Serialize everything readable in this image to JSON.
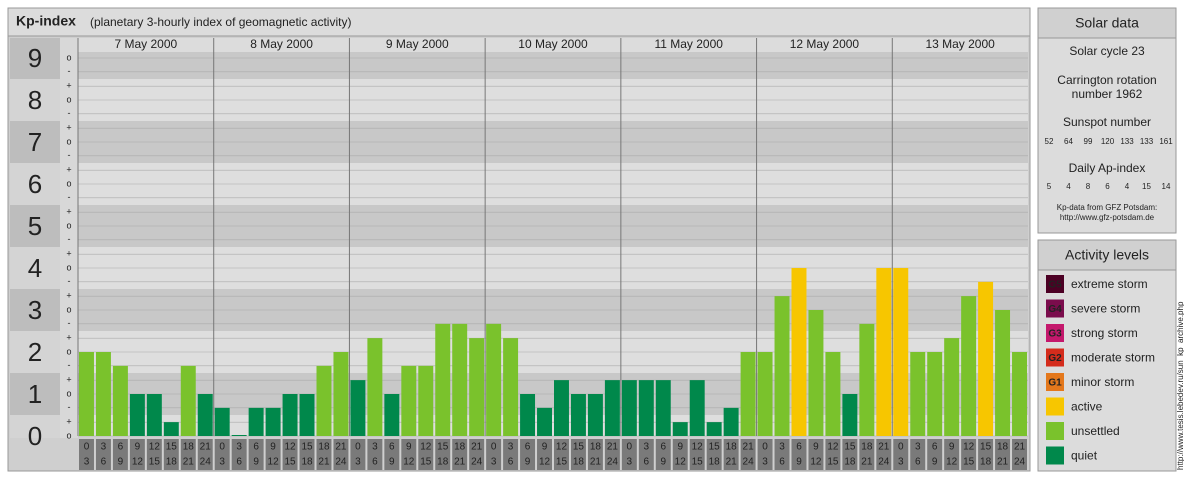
{
  "chart_data": {
    "type": "bar",
    "title": "Kp-index",
    "subtitle": "(planetary 3-hourly index of geomagnetic activity)",
    "days": [
      "7 May 2000",
      "8 May 2000",
      "9 May 2000",
      "10 May 2000",
      "11 May 2000",
      "12 May 2000",
      "13 May 2000"
    ],
    "hours": [
      [
        "0",
        "3"
      ],
      [
        "3",
        "6"
      ],
      [
        "6",
        "9"
      ],
      [
        "9",
        "12"
      ],
      [
        "12",
        "15"
      ],
      [
        "15",
        "18"
      ],
      [
        "18",
        "21"
      ],
      [
        "21",
        "24"
      ]
    ],
    "values": [
      2,
      2,
      1.67,
      1,
      1,
      0.33,
      1.67,
      1,
      0.67,
      0,
      0.67,
      0.67,
      1,
      1,
      1.67,
      2,
      1.33,
      2.33,
      1,
      1.67,
      1.67,
      2.67,
      2.67,
      2.33,
      2.67,
      2.33,
      1,
      0.67,
      1.33,
      1,
      1,
      1.33,
      1.33,
      1.33,
      1.33,
      0.33,
      1.33,
      0.33,
      0.67,
      2,
      2,
      3.33,
      4,
      3,
      2,
      1,
      2.67,
      4,
      4,
      2,
      2,
      2.33,
      3.33,
      3.67,
      3,
      2
    ],
    "colors": [
      "#7ac22c",
      "#7ac22c",
      "#7ac22c",
      "#00884b",
      "#00884b",
      "#00884b",
      "#7ac22c",
      "#00884b",
      "#00884b",
      "#00884b",
      "#00884b",
      "#00884b",
      "#00884b",
      "#00884b",
      "#7ac22c",
      "#7ac22c",
      "#00884b",
      "#7ac22c",
      "#00884b",
      "#7ac22c",
      "#7ac22c",
      "#7ac22c",
      "#7ac22c",
      "#7ac22c",
      "#7ac22c",
      "#7ac22c",
      "#00884b",
      "#00884b",
      "#00884b",
      "#00884b",
      "#00884b",
      "#00884b",
      "#00884b",
      "#00884b",
      "#00884b",
      "#00884b",
      "#00884b",
      "#00884b",
      "#00884b",
      "#7ac22c",
      "#7ac22c",
      "#7ac22c",
      "#f7c600",
      "#7ac22c",
      "#7ac22c",
      "#00884b",
      "#7ac22c",
      "#f7c600",
      "#f7c600",
      "#7ac22c",
      "#7ac22c",
      "#7ac22c",
      "#7ac22c",
      "#f7c600",
      "#7ac22c",
      "#7ac22c"
    ],
    "ylim": [
      0,
      9
    ],
    "yticks": [
      0,
      1,
      2,
      3,
      4,
      5,
      6,
      7,
      8,
      9
    ],
    "minor_ticks": [
      {
        "value": 0,
        "label": "o"
      },
      {
        "value": 0.33,
        "label": "+"
      },
      {
        "value": 0.67,
        "label": "-"
      },
      {
        "value": 1,
        "label": "o"
      },
      {
        "value": 1.33,
        "label": "+"
      },
      {
        "value": 1.67,
        "label": "-"
      },
      {
        "value": 2,
        "label": "o"
      },
      {
        "value": 2.33,
        "label": "+"
      },
      {
        "value": 2.67,
        "label": "-"
      },
      {
        "value": 3,
        "label": "o"
      },
      {
        "value": 3.33,
        "label": "+"
      },
      {
        "value": 3.67,
        "label": "-"
      },
      {
        "value": 4,
        "label": "o"
      },
      {
        "value": 4.33,
        "label": "+"
      },
      {
        "value": 4.67,
        "label": "-"
      },
      {
        "value": 5,
        "label": "o"
      },
      {
        "value": 5.33,
        "label": "+"
      },
      {
        "value": 5.67,
        "label": "-"
      },
      {
        "value": 6,
        "label": "o"
      },
      {
        "value": 6.33,
        "label": "+"
      },
      {
        "value": 6.67,
        "label": "-"
      },
      {
        "value": 7,
        "label": "o"
      },
      {
        "value": 7.33,
        "label": "+"
      },
      {
        "value": 7.67,
        "label": "-"
      },
      {
        "value": 8,
        "label": "o"
      },
      {
        "value": 8.33,
        "label": "+"
      },
      {
        "value": 8.67,
        "label": "-"
      },
      {
        "value": 9,
        "label": "o"
      }
    ],
    "grid": true
  },
  "solar_data": {
    "title": "Solar data",
    "cycle": "Solar cycle 23",
    "carrington": [
      "Carrington rotation",
      "number 1962"
    ],
    "sunspot_title": "Sunspot number",
    "sunspot": [
      52,
      64,
      99,
      120,
      133,
      133,
      161
    ],
    "ap_title": "Daily Ap-index",
    "ap": [
      5,
      4,
      8,
      6,
      4,
      15,
      14
    ],
    "source": [
      "Kp-data from GFZ Potsdam:",
      "http://www.gfz-potsdam.de"
    ]
  },
  "activity_levels": {
    "title": "Activity levels",
    "items": [
      {
        "code": "G5",
        "label": "extreme storm",
        "color": "#4c0024"
      },
      {
        "code": "G4",
        "label": "severe storm",
        "color": "#7a0c4c"
      },
      {
        "code": "G3",
        "label": "strong storm",
        "color": "#c4186c"
      },
      {
        "code": "G2",
        "label": "moderate storm",
        "color": "#d42c1c"
      },
      {
        "code": "G1",
        "label": "minor storm",
        "color": "#e4781c"
      },
      {
        "code": null,
        "label": "active",
        "color": "#f7c600"
      },
      {
        "code": null,
        "label": "unsettled",
        "color": "#7ac22c"
      },
      {
        "code": null,
        "label": "quiet",
        "color": "#00884b"
      }
    ]
  },
  "watermark": "http://www.tesis.lebedev.ru/sun_kp_archive.php"
}
